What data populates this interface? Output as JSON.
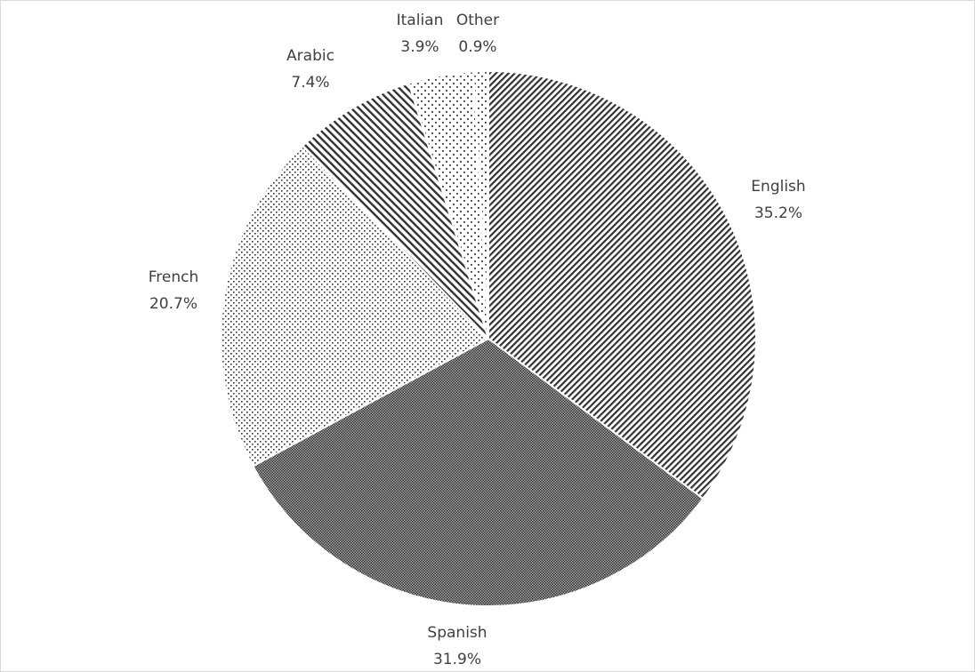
{
  "chart_data": {
    "type": "pie",
    "title": "",
    "start_angle": "12 o'clock",
    "direction": "clockwise",
    "legend": "none",
    "slices": [
      {
        "label": "English",
        "value": 35.2,
        "value_label": "35.2%",
        "pattern": "diagonal-stripes-up"
      },
      {
        "label": "Spanish",
        "value": 31.9,
        "value_label": "31.9%",
        "pattern": "dense-checker"
      },
      {
        "label": "French",
        "value": 20.7,
        "value_label": "20.7%",
        "pattern": "small-dots"
      },
      {
        "label": "Arabic",
        "value": 7.4,
        "value_label": "7.4%",
        "pattern": "diagonal-stripes-down"
      },
      {
        "label": "Italian",
        "value": 3.9,
        "value_label": "3.9%",
        "pattern": "sparse-dots"
      },
      {
        "label": "Other",
        "value": 0.9,
        "value_label": "0.9%",
        "pattern": "sparse-dots"
      }
    ]
  }
}
